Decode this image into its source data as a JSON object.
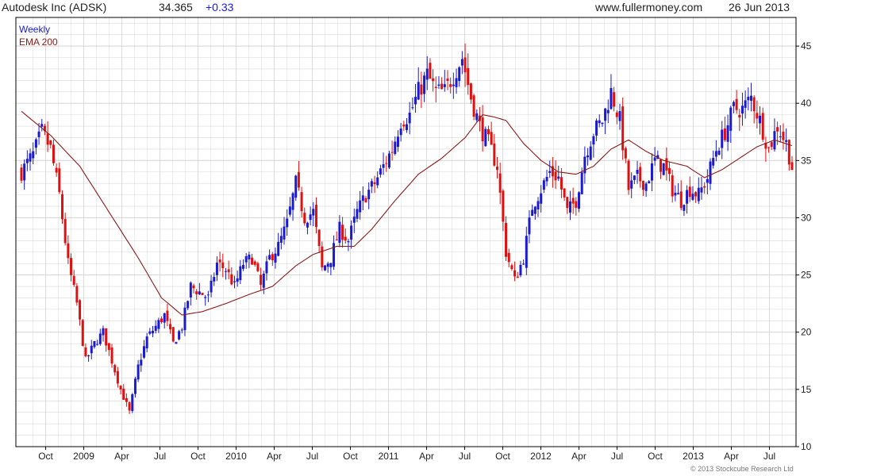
{
  "header": {
    "name": "Autodesk Inc (ADSK)",
    "price": "34.365",
    "change": "+0.33",
    "site": "www.fullermoney.com",
    "date": "26 Jun 2013"
  },
  "copyright": "© 2013 Stockcube Research Ltd",
  "colors": {
    "up": "#1a1ad0",
    "down": "#e01010",
    "ema": "#8b1a1a",
    "grid": "#d8d8d8",
    "axis": "#000000"
  },
  "chart_data": {
    "type": "candlestick",
    "legend": [
      {
        "label": "Weekly",
        "color": "#1a1ad0"
      },
      {
        "label": "EMA 200",
        "color": "#8b1a1a"
      }
    ],
    "legend_placement": "top-left",
    "y_axis": {
      "side": "right",
      "min": 10,
      "max": 47.5,
      "ticks": [
        10,
        15,
        20,
        25,
        30,
        35,
        40,
        45
      ]
    },
    "x_axis": {
      "labels": [
        "Oct",
        "2009",
        "Apr",
        "Jul",
        "Oct",
        "2010",
        "Apr",
        "Jul",
        "Oct",
        "2011",
        "Apr",
        "Jul",
        "Oct",
        "2012",
        "Apr",
        "Jul",
        "Oct",
        "2013",
        "Apr",
        "Jul"
      ]
    },
    "grid": true,
    "close_anchors": [
      [
        0,
        34
      ],
      [
        4,
        35.5
      ],
      [
        7,
        37.5
      ],
      [
        10,
        36
      ],
      [
        13,
        32
      ],
      [
        16,
        26
      ],
      [
        19,
        22.5
      ],
      [
        22,
        17.5
      ],
      [
        25,
        19
      ],
      [
        28,
        20
      ],
      [
        31,
        17.5
      ],
      [
        34,
        15
      ],
      [
        37,
        13
      ],
      [
        40,
        17
      ],
      [
        43,
        19.5
      ],
      [
        46,
        20.5
      ],
      [
        49,
        21.5
      ],
      [
        52,
        19
      ],
      [
        55,
        20.5
      ],
      [
        58,
        24
      ],
      [
        61,
        23.5
      ],
      [
        64,
        23
      ],
      [
        67,
        26
      ],
      [
        70,
        25.5
      ],
      [
        73,
        24
      ],
      [
        76,
        26
      ],
      [
        79,
        26.5
      ],
      [
        82,
        24
      ],
      [
        85,
        26.5
      ],
      [
        88,
        27.5
      ],
      [
        91,
        29.5
      ],
      [
        94,
        33
      ],
      [
        97,
        30
      ],
      [
        100,
        30.5
      ],
      [
        103,
        25.5
      ],
      [
        106,
        26.5
      ],
      [
        109,
        29
      ],
      [
        112,
        28
      ],
      [
        115,
        30.5
      ],
      [
        118,
        32
      ],
      [
        121,
        33
      ],
      [
        124,
        34.5
      ],
      [
        127,
        36
      ],
      [
        130,
        38.5
      ],
      [
        133,
        39
      ],
      [
        136,
        41
      ],
      [
        139,
        42.5
      ],
      [
        142,
        41
      ],
      [
        145,
        41
      ],
      [
        148,
        42.5
      ],
      [
        151,
        44
      ],
      [
        154,
        40.5
      ],
      [
        157,
        38
      ],
      [
        160,
        36.5
      ],
      [
        163,
        34.5
      ],
      [
        166,
        27
      ],
      [
        169,
        24.5
      ],
      [
        172,
        26.5
      ],
      [
        175,
        31
      ],
      [
        178,
        32.5
      ],
      [
        181,
        34
      ],
      [
        184,
        33.5
      ],
      [
        187,
        30.5
      ],
      [
        190,
        31.5
      ],
      [
        193,
        35.5
      ],
      [
        196,
        37.5
      ],
      [
        199,
        38.5
      ],
      [
        202,
        41
      ],
      [
        205,
        38.5
      ],
      [
        208,
        32.5
      ],
      [
        211,
        33.5
      ],
      [
        214,
        33
      ],
      [
        217,
        35
      ],
      [
        220,
        34.5
      ],
      [
        223,
        32.5
      ],
      [
        226,
        31.5
      ],
      [
        229,
        32.5
      ],
      [
        232,
        32
      ],
      [
        235,
        33.5
      ],
      [
        238,
        36
      ],
      [
        241,
        37.5
      ],
      [
        244,
        39.5
      ],
      [
        247,
        39.5
      ],
      [
        250,
        40.5
      ],
      [
        253,
        38.5
      ],
      [
        256,
        36
      ],
      [
        259,
        38
      ],
      [
        262,
        36.5
      ],
      [
        264,
        34.4
      ]
    ],
    "ema_200_anchors": [
      [
        0,
        39.3
      ],
      [
        10,
        37.2
      ],
      [
        20,
        34.5
      ],
      [
        30,
        30.5
      ],
      [
        40,
        26.5
      ],
      [
        48,
        23
      ],
      [
        55,
        21.5
      ],
      [
        62,
        21.8
      ],
      [
        70,
        22.5
      ],
      [
        78,
        23.3
      ],
      [
        86,
        24
      ],
      [
        94,
        25.8
      ],
      [
        100,
        26.8
      ],
      [
        108,
        27.5
      ],
      [
        114,
        27.5
      ],
      [
        120,
        29
      ],
      [
        128,
        31.5
      ],
      [
        136,
        33.8
      ],
      [
        144,
        35.2
      ],
      [
        152,
        37
      ],
      [
        158,
        39
      ],
      [
        162,
        38.8
      ],
      [
        166,
        38.5
      ],
      [
        172,
        36.5
      ],
      [
        178,
        35
      ],
      [
        184,
        34
      ],
      [
        190,
        33.8
      ],
      [
        196,
        34.5
      ],
      [
        202,
        36
      ],
      [
        208,
        36.8
      ],
      [
        214,
        35.8
      ],
      [
        220,
        35
      ],
      [
        228,
        34.5
      ],
      [
        234,
        33.5
      ],
      [
        240,
        34.2
      ],
      [
        246,
        35.2
      ],
      [
        252,
        36.2
      ],
      [
        258,
        36.8
      ],
      [
        264,
        36.3
      ]
    ],
    "weeks": 265
  }
}
